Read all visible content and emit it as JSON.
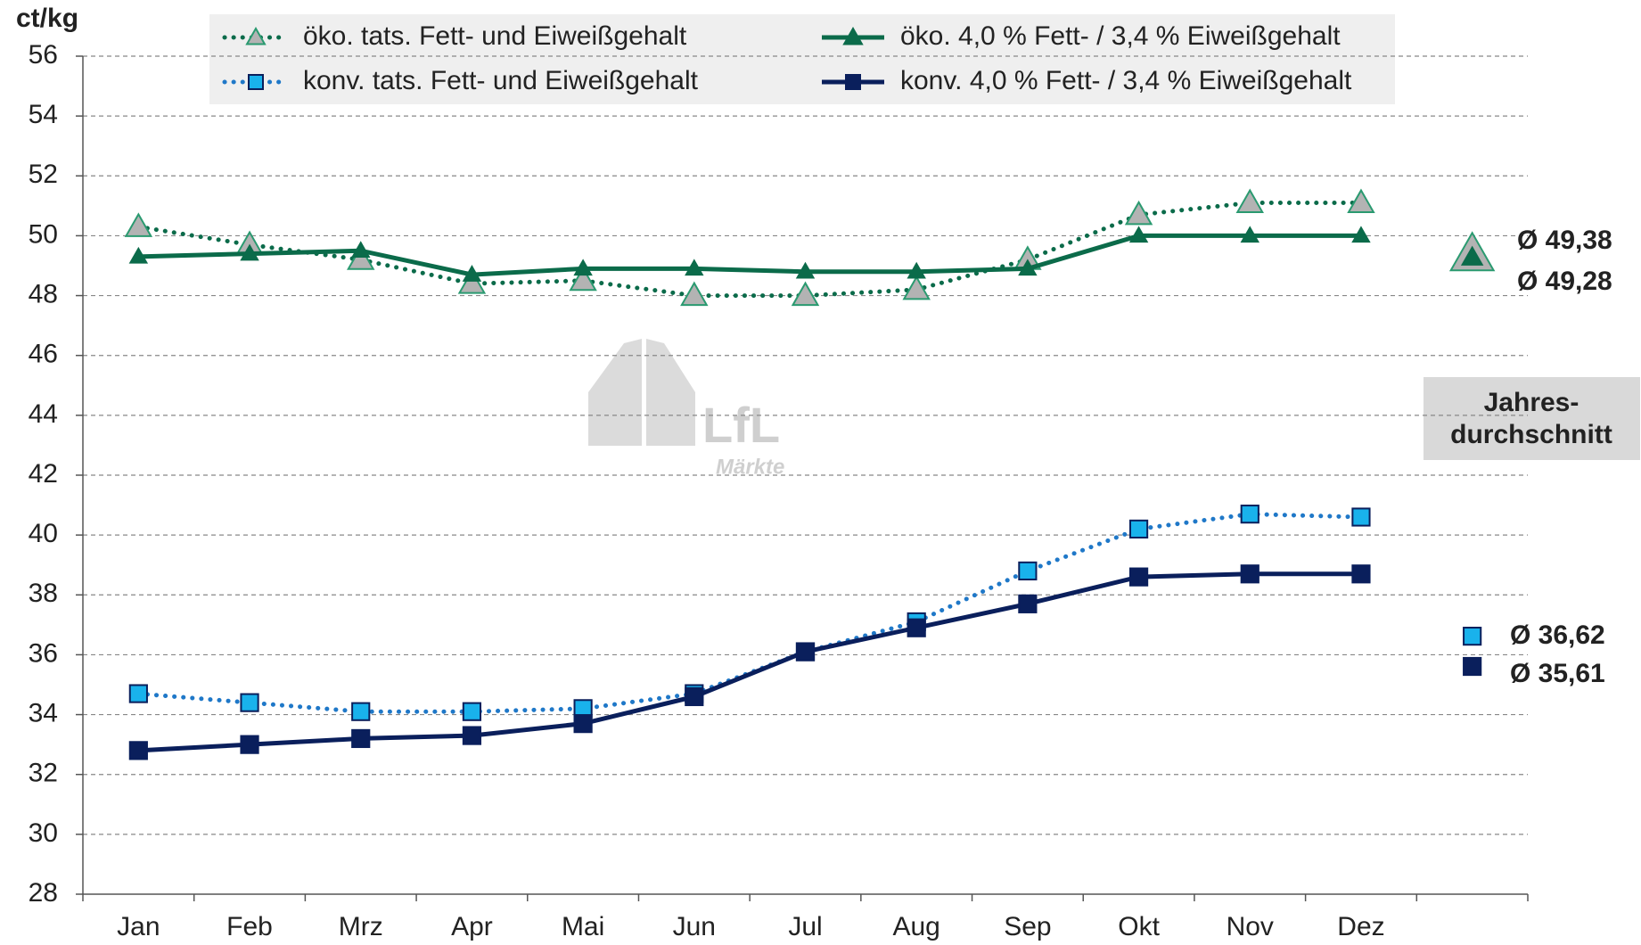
{
  "chart_data": {
    "type": "line",
    "y_label": "ct/kg",
    "categories": [
      "Jan",
      "Feb",
      "Mrz",
      "Apr",
      "Mai",
      "Jun",
      "Jul",
      "Aug",
      "Sep",
      "Okt",
      "Nov",
      "Dez",
      null
    ],
    "ylim": [
      28,
      56
    ],
    "yticks": [
      28,
      30,
      32,
      34,
      36,
      38,
      40,
      42,
      44,
      46,
      48,
      50,
      52,
      54,
      56
    ],
    "grid": true,
    "series": [
      {
        "name": "öko. tats. Fett- und Eiweißgehalt",
        "color": "#0b6b4a",
        "line_style": "dotted",
        "marker": "triangle",
        "marker_color": "#b3b3b3",
        "values": [
          50.3,
          49.7,
          49.2,
          48.4,
          48.5,
          48.0,
          48.0,
          48.2,
          49.2,
          50.7,
          51.1,
          51.1,
          null
        ],
        "average": 49.38,
        "average_label": "Ø 49,38"
      },
      {
        "name": "öko. 4,0 % Fett- / 3,4 % Eiweißgehalt",
        "color": "#0b6b4a",
        "line_style": "solid",
        "marker": "triangle",
        "marker_color": "#0b6b4a",
        "values": [
          49.3,
          49.4,
          49.5,
          48.7,
          48.9,
          48.9,
          48.8,
          48.8,
          48.9,
          50.0,
          50.0,
          50.0,
          null
        ],
        "average": 49.28,
        "average_label": "Ø 49,28"
      },
      {
        "name": "konv. tats. Fett- und Eiweißgehalt",
        "color": "#1f78c8",
        "line_style": "dotted",
        "marker": "square",
        "marker_color": "#19b2ec",
        "values": [
          34.7,
          34.4,
          34.1,
          34.1,
          34.2,
          34.7,
          36.1,
          37.1,
          38.8,
          40.2,
          40.7,
          40.6,
          null
        ],
        "average": 36.62,
        "average_label": "Ø 36,62"
      },
      {
        "name": "konv. 4,0 % Fett- / 3,4 % Eiweißgehalt",
        "color": "#0a1f5c",
        "line_style": "solid",
        "marker": "square",
        "marker_color": "#0a1f5c",
        "values": [
          32.8,
          33.0,
          33.2,
          33.3,
          33.7,
          34.6,
          36.1,
          36.9,
          37.7,
          38.6,
          38.7,
          38.7,
          null
        ],
        "average": 35.61,
        "average_label": "Ø 35,61"
      }
    ],
    "average_box": [
      "Jahres-",
      "durchschnitt"
    ],
    "watermark": [
      "LfL",
      "Märkte"
    ]
  }
}
